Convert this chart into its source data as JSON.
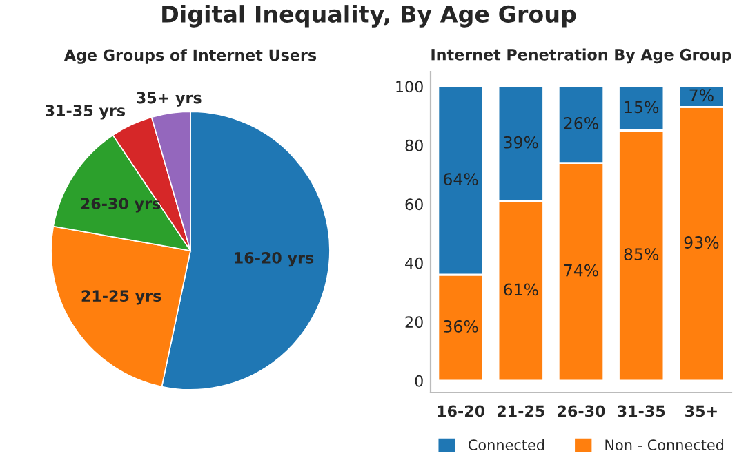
{
  "chart_data": [
    {
      "type": "other",
      "title": "Digital Inequality, By Age Group"
    },
    {
      "type": "pie",
      "title": "Age Groups of Internet Users",
      "categories": [
        "16-20 yrs",
        "21-25 yrs",
        "26-30 yrs",
        "31-35 yrs",
        "35+ yrs"
      ],
      "values": [
        53.3,
        24.5,
        12.8,
        4.9,
        4.5
      ],
      "colors": [
        "#1f77b4",
        "#ff7f0e",
        "#2ca02c",
        "#d62728",
        "#9467bd"
      ]
    },
    {
      "type": "bar",
      "title": "Internet Penetration By Age Group",
      "stacked": true,
      "categories": [
        "16-20",
        "21-25",
        "26-30",
        "31-35",
        "35+"
      ],
      "ylim": [
        -4,
        105
      ],
      "yticks": [
        0,
        20,
        40,
        60,
        80,
        100
      ],
      "grid": false,
      "legend": "bottom",
      "series": [
        {
          "name": "Non - Connected",
          "color": "#ff7f0e",
          "values": [
            36,
            61,
            74,
            85,
            93
          ],
          "value_labels": [
            "36%",
            "61%",
            "74%",
            "85%",
            "93%"
          ]
        },
        {
          "name": "Connected",
          "color": "#1f77b4",
          "values": [
            64,
            39,
            26,
            15,
            7
          ],
          "value_labels": [
            "64%",
            "39%",
            "26%",
            "15%",
            "7%"
          ]
        }
      ]
    }
  ]
}
